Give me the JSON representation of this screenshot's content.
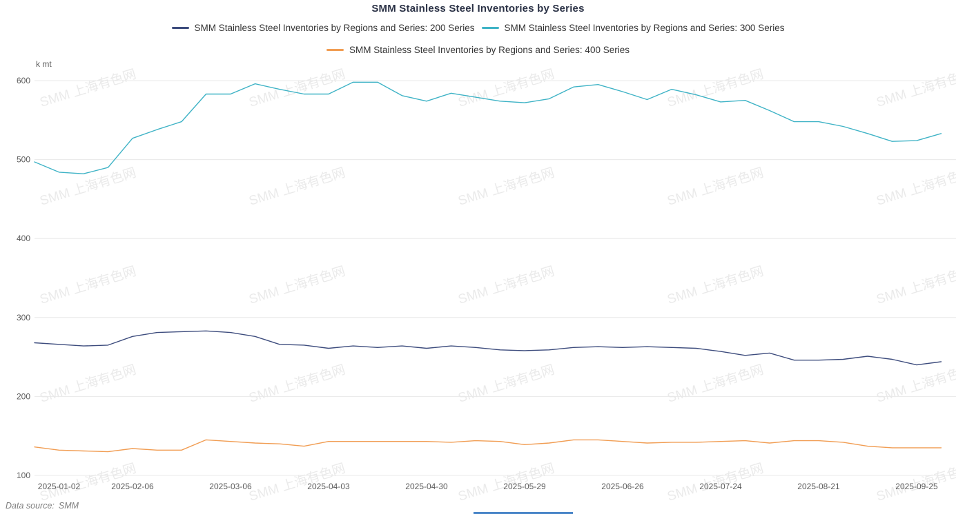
{
  "title": "SMM Stainless Steel Inventories by Series",
  "y_unit": "k mt",
  "watermark_text": "SMM 上海有色网",
  "data_source": {
    "label": "Data source:",
    "value": "SMM"
  },
  "colors": {
    "series_200": "#3d4c7d",
    "series_300": "#3fb3c6",
    "series_400": "#f19d53",
    "grid": "#e8e8e8",
    "bottom_bar": "#4a86c8"
  },
  "chart_data": {
    "type": "line",
    "title": "SMM Stainless Steel Inventories by Series",
    "ylabel": "k mt",
    "ylim": [
      100,
      600
    ],
    "y_ticks": [
      100,
      200,
      300,
      400,
      500,
      600
    ],
    "grid": true,
    "legend_position": "top",
    "n_points": 38,
    "x_tick_indices": [
      1,
      4,
      8,
      12,
      16,
      20,
      24,
      28,
      32,
      36
    ],
    "x_tick_labels": [
      "2025-01-02",
      "2025-02-06",
      "2025-03-06",
      "2025-04-03",
      "2025-04-30",
      "2025-05-29",
      "2025-06-26",
      "2025-07-24",
      "2025-08-21",
      "2025-09-25"
    ],
    "series": [
      {
        "name": "SMM Stainless Steel Inventories by Regions and Series: 200 Series",
        "color": "#3d4c7d",
        "values": [
          268,
          266,
          264,
          265,
          276,
          281,
          282,
          283,
          281,
          276,
          266,
          265,
          261,
          264,
          262,
          264,
          261,
          264,
          262,
          259,
          258,
          259,
          262,
          263,
          262,
          263,
          262,
          261,
          257,
          252,
          255,
          246,
          246,
          247,
          251,
          247,
          240,
          244
        ]
      },
      {
        "name": "SMM Stainless Steel Inventories by Regions and Series: 300 Series",
        "color": "#3fb3c6",
        "values": [
          497,
          484,
          482,
          490,
          527,
          538,
          548,
          583,
          583,
          596,
          589,
          583,
          583,
          598,
          598,
          581,
          574,
          584,
          579,
          574,
          572,
          577,
          592,
          595,
          586,
          576,
          589,
          582,
          573,
          575,
          562,
          548,
          548,
          542,
          533,
          523,
          524,
          533
        ]
      },
      {
        "name": "SMM Stainless Steel Inventories by Regions and Series: 400 Series",
        "color": "#f19d53",
        "values": [
          136,
          132,
          131,
          130,
          134,
          132,
          132,
          145,
          143,
          141,
          140,
          137,
          143,
          143,
          143,
          143,
          143,
          142,
          144,
          143,
          139,
          141,
          145,
          145,
          143,
          141,
          142,
          142,
          143,
          144,
          141,
          144,
          144,
          142,
          137,
          135,
          135,
          135
        ]
      }
    ]
  }
}
